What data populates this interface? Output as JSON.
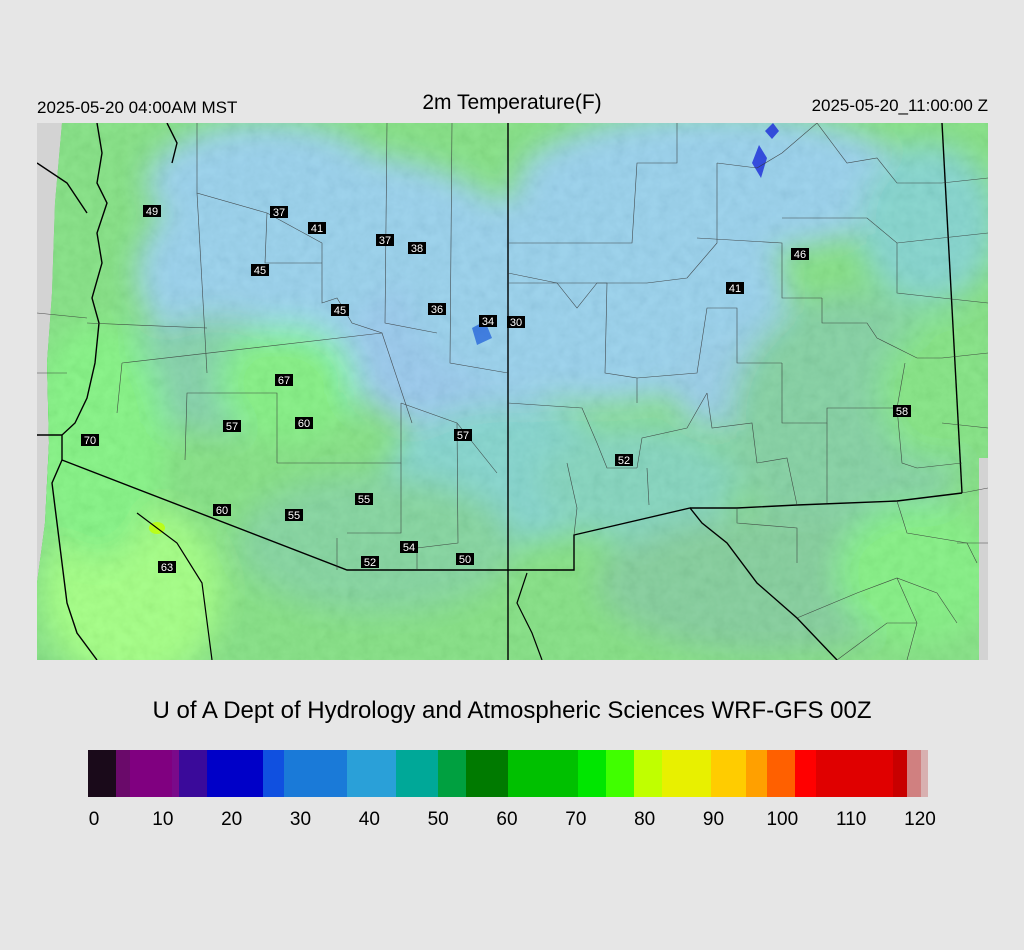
{
  "header": {
    "local_time": "2025-05-20 04:00AM MST",
    "title": "2m Temperature(F)",
    "valid_time": "2025-05-20_11:00:00 Z"
  },
  "footer": {
    "credit": "U of A Dept of Hydrology and Atmospheric Sciences WRF-GFS 00Z"
  },
  "colorbar": {
    "min": 0,
    "max": 120,
    "tick_labels": [
      "0",
      "10",
      "20",
      "30",
      "40",
      "50",
      "60",
      "70",
      "80",
      "90",
      "100",
      "110",
      "120"
    ],
    "stops": [
      {
        "v": 0,
        "color": "#1a0a1a"
      },
      {
        "v": 4,
        "color": "#6a0a6a"
      },
      {
        "v": 6,
        "color": "#800080"
      },
      {
        "v": 12,
        "color": "#7a0a8a"
      },
      {
        "v": 13,
        "color": "#3a0a9a"
      },
      {
        "v": 17,
        "color": "#0000c8"
      },
      {
        "v": 24,
        "color": "#0000c8"
      },
      {
        "v": 25,
        "color": "#1050e0"
      },
      {
        "v": 28,
        "color": "#1a7ad8"
      },
      {
        "v": 37,
        "color": "#2aa0d8"
      },
      {
        "v": 44,
        "color": "#00a898"
      },
      {
        "v": 50,
        "color": "#00a040"
      },
      {
        "v": 54,
        "color": "#007a00"
      },
      {
        "v": 60,
        "color": "#00c000"
      },
      {
        "v": 70,
        "color": "#00e600"
      },
      {
        "v": 74,
        "color": "#40ff00"
      },
      {
        "v": 78,
        "color": "#c0ff00"
      },
      {
        "v": 82,
        "color": "#e8f000"
      },
      {
        "v": 89,
        "color": "#ffcc00"
      },
      {
        "v": 94,
        "color": "#ffa000"
      },
      {
        "v": 97,
        "color": "#ff6000"
      },
      {
        "v": 101,
        "color": "#ff0000"
      },
      {
        "v": 104,
        "color": "#e00000"
      },
      {
        "v": 115,
        "color": "#c80000"
      },
      {
        "v": 117,
        "color": "#d08080"
      },
      {
        "v": 119,
        "color": "#d8b0b0"
      },
      {
        "v": 120,
        "color": "#d3d3d3"
      }
    ]
  },
  "stations": [
    {
      "label": "49",
      "value": 49
    },
    {
      "label": "37",
      "value": 37
    },
    {
      "label": "41",
      "value": 41
    },
    {
      "label": "37",
      "value": 37
    },
    {
      "label": "38",
      "value": 38
    },
    {
      "label": "45",
      "value": 45
    },
    {
      "label": "45",
      "value": 45
    },
    {
      "label": "36",
      "value": 36
    },
    {
      "label": "34",
      "value": 34
    },
    {
      "label": "30",
      "value": 30
    },
    {
      "label": "46",
      "value": 46
    },
    {
      "label": "41",
      "value": 41
    },
    {
      "label": "67",
      "value": 67
    },
    {
      "label": "57",
      "value": 57
    },
    {
      "label": "60",
      "value": 60
    },
    {
      "label": "57",
      "value": 57
    },
    {
      "label": "70",
      "value": 70
    },
    {
      "label": "58",
      "value": 58
    },
    {
      "label": "52",
      "value": 52
    },
    {
      "label": "55",
      "value": 55
    },
    {
      "label": "60",
      "value": 60
    },
    {
      "label": "55",
      "value": 55
    },
    {
      "label": "54",
      "value": 54
    },
    {
      "label": "52",
      "value": 52
    },
    {
      "label": "50",
      "value": 50
    },
    {
      "label": "63",
      "value": 63
    }
  ]
}
